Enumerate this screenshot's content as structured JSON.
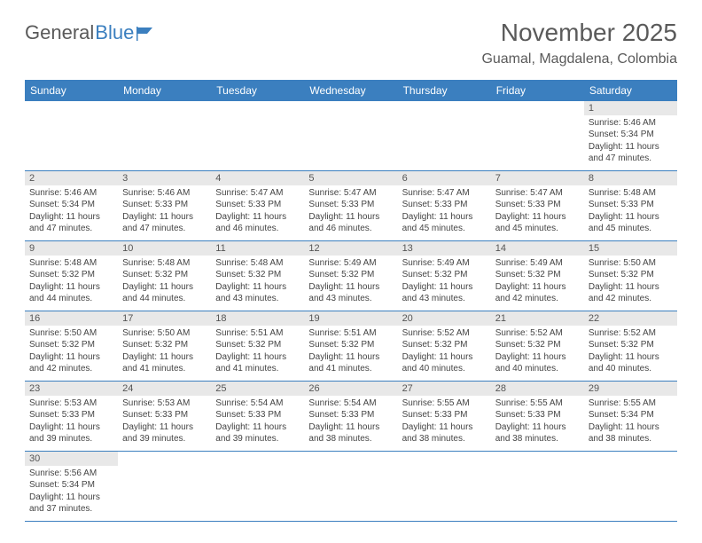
{
  "logo": {
    "word1": "General",
    "word2": "Blue"
  },
  "title": "November 2025",
  "location": "Guamal, Magdalena, Colombia",
  "weekdays": [
    "Sunday",
    "Monday",
    "Tuesday",
    "Wednesday",
    "Thursday",
    "Friday",
    "Saturday"
  ],
  "header_bg": "#3b7fbf",
  "daybar_bg": "#e8e8e8",
  "weeks": [
    [
      null,
      null,
      null,
      null,
      null,
      null,
      {
        "n": "1",
        "sr": "5:46 AM",
        "ss": "5:34 PM",
        "dl": "11 hours and 47 minutes."
      }
    ],
    [
      {
        "n": "2",
        "sr": "5:46 AM",
        "ss": "5:34 PM",
        "dl": "11 hours and 47 minutes."
      },
      {
        "n": "3",
        "sr": "5:46 AM",
        "ss": "5:33 PM",
        "dl": "11 hours and 47 minutes."
      },
      {
        "n": "4",
        "sr": "5:47 AM",
        "ss": "5:33 PM",
        "dl": "11 hours and 46 minutes."
      },
      {
        "n": "5",
        "sr": "5:47 AM",
        "ss": "5:33 PM",
        "dl": "11 hours and 46 minutes."
      },
      {
        "n": "6",
        "sr": "5:47 AM",
        "ss": "5:33 PM",
        "dl": "11 hours and 45 minutes."
      },
      {
        "n": "7",
        "sr": "5:47 AM",
        "ss": "5:33 PM",
        "dl": "11 hours and 45 minutes."
      },
      {
        "n": "8",
        "sr": "5:48 AM",
        "ss": "5:33 PM",
        "dl": "11 hours and 45 minutes."
      }
    ],
    [
      {
        "n": "9",
        "sr": "5:48 AM",
        "ss": "5:32 PM",
        "dl": "11 hours and 44 minutes."
      },
      {
        "n": "10",
        "sr": "5:48 AM",
        "ss": "5:32 PM",
        "dl": "11 hours and 44 minutes."
      },
      {
        "n": "11",
        "sr": "5:48 AM",
        "ss": "5:32 PM",
        "dl": "11 hours and 43 minutes."
      },
      {
        "n": "12",
        "sr": "5:49 AM",
        "ss": "5:32 PM",
        "dl": "11 hours and 43 minutes."
      },
      {
        "n": "13",
        "sr": "5:49 AM",
        "ss": "5:32 PM",
        "dl": "11 hours and 43 minutes."
      },
      {
        "n": "14",
        "sr": "5:49 AM",
        "ss": "5:32 PM",
        "dl": "11 hours and 42 minutes."
      },
      {
        "n": "15",
        "sr": "5:50 AM",
        "ss": "5:32 PM",
        "dl": "11 hours and 42 minutes."
      }
    ],
    [
      {
        "n": "16",
        "sr": "5:50 AM",
        "ss": "5:32 PM",
        "dl": "11 hours and 42 minutes."
      },
      {
        "n": "17",
        "sr": "5:50 AM",
        "ss": "5:32 PM",
        "dl": "11 hours and 41 minutes."
      },
      {
        "n": "18",
        "sr": "5:51 AM",
        "ss": "5:32 PM",
        "dl": "11 hours and 41 minutes."
      },
      {
        "n": "19",
        "sr": "5:51 AM",
        "ss": "5:32 PM",
        "dl": "11 hours and 41 minutes."
      },
      {
        "n": "20",
        "sr": "5:52 AM",
        "ss": "5:32 PM",
        "dl": "11 hours and 40 minutes."
      },
      {
        "n": "21",
        "sr": "5:52 AM",
        "ss": "5:32 PM",
        "dl": "11 hours and 40 minutes."
      },
      {
        "n": "22",
        "sr": "5:52 AM",
        "ss": "5:32 PM",
        "dl": "11 hours and 40 minutes."
      }
    ],
    [
      {
        "n": "23",
        "sr": "5:53 AM",
        "ss": "5:33 PM",
        "dl": "11 hours and 39 minutes."
      },
      {
        "n": "24",
        "sr": "5:53 AM",
        "ss": "5:33 PM",
        "dl": "11 hours and 39 minutes."
      },
      {
        "n": "25",
        "sr": "5:54 AM",
        "ss": "5:33 PM",
        "dl": "11 hours and 39 minutes."
      },
      {
        "n": "26",
        "sr": "5:54 AM",
        "ss": "5:33 PM",
        "dl": "11 hours and 38 minutes."
      },
      {
        "n": "27",
        "sr": "5:55 AM",
        "ss": "5:33 PM",
        "dl": "11 hours and 38 minutes."
      },
      {
        "n": "28",
        "sr": "5:55 AM",
        "ss": "5:33 PM",
        "dl": "11 hours and 38 minutes."
      },
      {
        "n": "29",
        "sr": "5:55 AM",
        "ss": "5:34 PM",
        "dl": "11 hours and 38 minutes."
      }
    ],
    [
      {
        "n": "30",
        "sr": "5:56 AM",
        "ss": "5:34 PM",
        "dl": "11 hours and 37 minutes."
      },
      null,
      null,
      null,
      null,
      null,
      null
    ]
  ],
  "labels": {
    "sunrise": "Sunrise: ",
    "sunset": "Sunset: ",
    "daylight": "Daylight: "
  }
}
